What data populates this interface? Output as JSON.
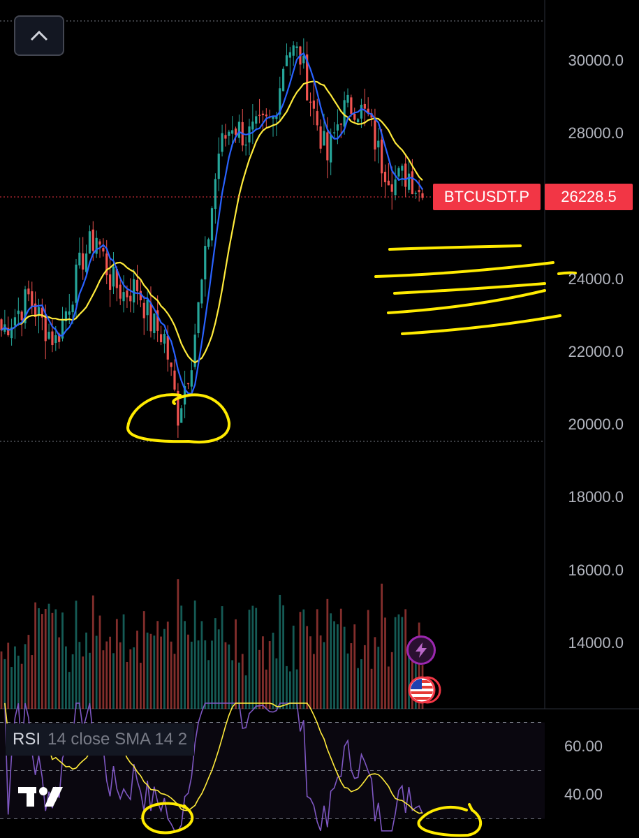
{
  "chart_data": {
    "type": "candlestick",
    "symbol": "BTCUSDT.P",
    "last_price": "26228.5",
    "price_axis": {
      "ticks": [
        "30000.0",
        "28000.0",
        "24000.0",
        "22000.0",
        "20000.0",
        "18000.0",
        "16000.0",
        "14000.0"
      ],
      "ylim": [
        12000,
        31500
      ]
    },
    "rsi": {
      "legend_name": "RSI",
      "legend_params": "14 close SMA 14 2",
      "ticks": [
        "60.00",
        "40.00"
      ],
      "levels": [
        70,
        50,
        30
      ]
    },
    "key_closes": [
      22600,
      23000,
      23500,
      22800,
      22300,
      23400,
      24600,
      25200,
      24000,
      23600,
      23800,
      22800,
      22400,
      20300,
      21900,
      24500,
      27500,
      28300,
      27900,
      28100,
      28400,
      30400,
      30100,
      28600,
      27300,
      28600,
      28800,
      28400,
      27200,
      26700,
      26900,
      26228.5
    ],
    "annotations": [
      "yellow circle around low near 20000",
      "yellow resistance strokes 23000-25000",
      "yellow circles on RSI lows"
    ]
  },
  "ui": {
    "collapse_button": "chevron-up-icon",
    "logo": "tradingview-logo",
    "flash_icon": "lightning-icon",
    "flag_icon": "us-flag-icon"
  },
  "colors": {
    "up": "#26a69a",
    "down": "#ef5350",
    "ma_fast": "#2962ff",
    "ma_slow": "#ffeb3b",
    "rsi": "#7e57c2",
    "badge": "#f23645",
    "annotation": "#ffeb00"
  }
}
